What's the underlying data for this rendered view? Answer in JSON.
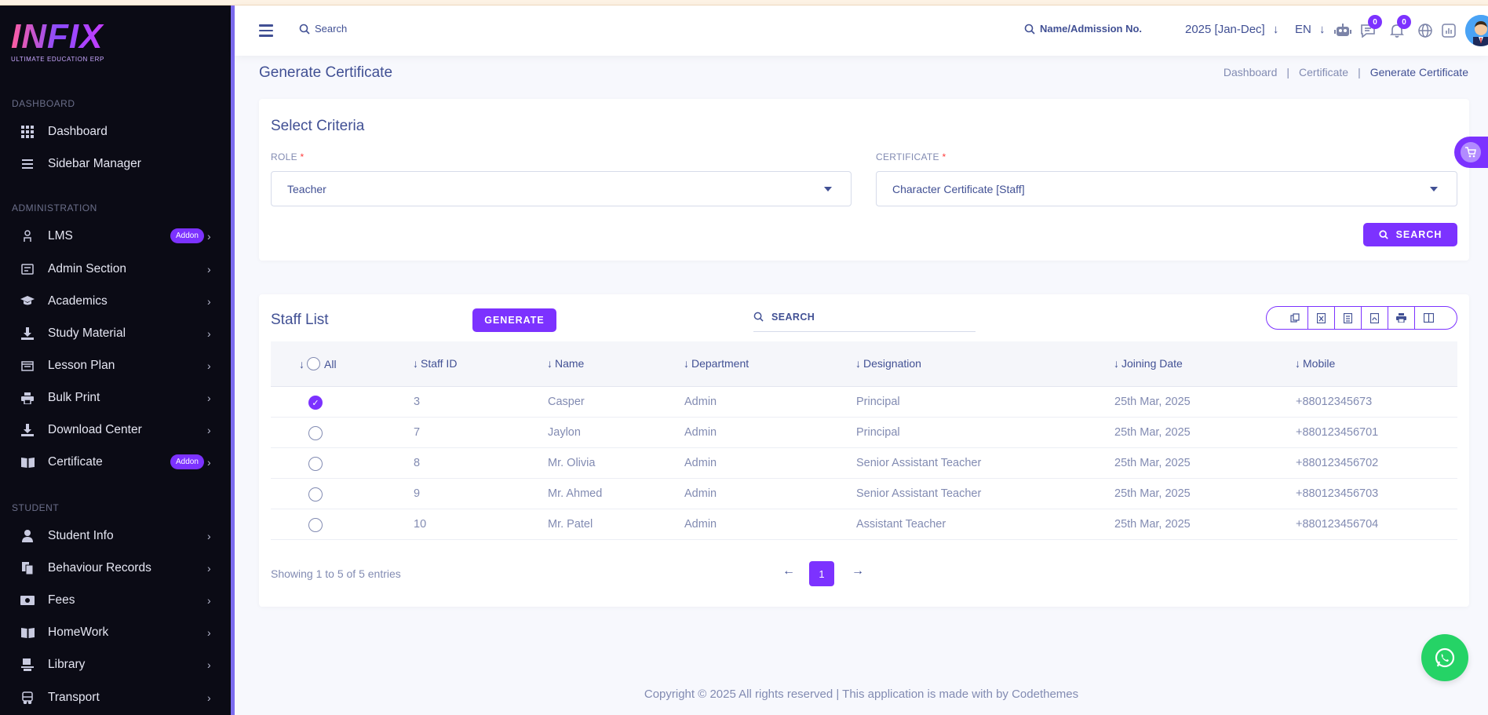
{
  "brand": {
    "name": "INFIX",
    "tagline": "ULTIMATE EDUCATION ERP"
  },
  "sidebar": {
    "sections": [
      {
        "title": "DASHBOARD"
      },
      {
        "title": "ADMINISTRATION"
      },
      {
        "title": "STUDENT"
      }
    ],
    "items": [
      {
        "label": "Dashboard",
        "icon": "grid-icon"
      },
      {
        "label": "Sidebar Manager",
        "icon": "menu-icon"
      },
      {
        "label": "LMS",
        "icon": "lms-icon",
        "badge": "Addon"
      },
      {
        "label": "Admin Section",
        "icon": "admin-icon"
      },
      {
        "label": "Academics",
        "icon": "graduation-cap-icon"
      },
      {
        "label": "Study Material",
        "icon": "download-icon"
      },
      {
        "label": "Lesson Plan",
        "icon": "lesson-icon"
      },
      {
        "label": "Bulk Print",
        "icon": "printer-icon"
      },
      {
        "label": "Download Center",
        "icon": "download-icon"
      },
      {
        "label": "Certificate",
        "icon": "book-icon",
        "badge": "Addon"
      },
      {
        "label": "Student Info",
        "icon": "user-icon"
      },
      {
        "label": "Behaviour Records",
        "icon": "records-icon"
      },
      {
        "label": "Fees",
        "icon": "money-icon"
      },
      {
        "label": "HomeWork",
        "icon": "book-icon"
      },
      {
        "label": "Library",
        "icon": "library-icon"
      },
      {
        "label": "Transport",
        "icon": "bus-icon"
      }
    ]
  },
  "header": {
    "search_label": "Search",
    "student_search_label": "Name/Admission No.",
    "session": "2025 [Jan-Dec]",
    "language": "EN",
    "messages_count": "0",
    "notifications_count": "0"
  },
  "page": {
    "title": "Generate Certificate",
    "breadcrumb": [
      "Dashboard",
      "Certificate",
      "Generate Certificate"
    ]
  },
  "criteria": {
    "title": "Select Criteria",
    "role_label": "ROLE",
    "role_value": "Teacher",
    "certificate_label": "CERTIFICATE",
    "certificate_value": "Character Certificate [Staff]",
    "required_mark": "*",
    "search_button": "SEARCH"
  },
  "staff_list": {
    "title": "Staff List",
    "generate_button": "GENERATE",
    "search_placeholder": "SEARCH",
    "columns": [
      "All",
      "Staff ID",
      "Name",
      "Department",
      "Designation",
      "Joining Date",
      "Mobile"
    ],
    "rows": [
      {
        "checked": true,
        "id": "3",
        "name": "Casper",
        "department": "Admin",
        "designation": "Principal",
        "joining": "25th Mar, 2025",
        "mobile": "+88012345673"
      },
      {
        "checked": false,
        "id": "7",
        "name": "Jaylon",
        "department": "Admin",
        "designation": "Principal",
        "joining": "25th Mar, 2025",
        "mobile": "+880123456701"
      },
      {
        "checked": false,
        "id": "8",
        "name": "Mr. Olivia",
        "department": "Admin",
        "designation": "Senior Assistant Teacher",
        "joining": "25th Mar, 2025",
        "mobile": "+880123456702"
      },
      {
        "checked": false,
        "id": "9",
        "name": "Mr. Ahmed",
        "department": "Admin",
        "designation": "Senior Assistant Teacher",
        "joining": "25th Mar, 2025",
        "mobile": "+880123456703"
      },
      {
        "checked": false,
        "id": "10",
        "name": "Mr. Patel",
        "department": "Admin",
        "designation": "Assistant Teacher",
        "joining": "25th Mar, 2025",
        "mobile": "+880123456704"
      }
    ],
    "showing": "Showing 1 to 5 of 5 entries",
    "current_page": "1"
  },
  "footer": {
    "text": "Copyright © 2025 All rights reserved | This application is made with by Codethemes"
  },
  "colors": {
    "accent": "#7c32ff",
    "sidebar_bg": "#0b0b15",
    "text": "#415094",
    "muted": "#828bb2",
    "whatsapp": "#25d366"
  }
}
